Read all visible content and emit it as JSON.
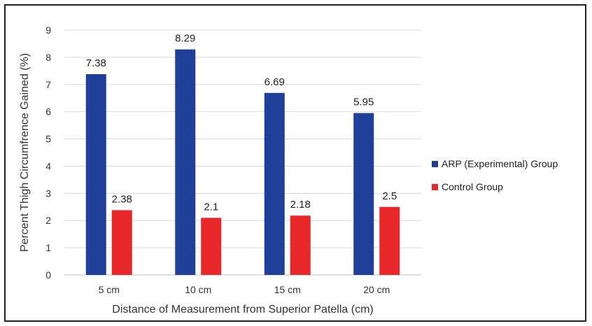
{
  "chart_data": {
    "type": "bar",
    "title": "",
    "xlabel": "Distance of Measurement from Superior Patella (cm)",
    "ylabel": "Percent Thigh Circumfrence Gained (%)",
    "categories": [
      "5 cm",
      "10 cm",
      "15 cm",
      "20 cm"
    ],
    "ylim": [
      0,
      9
    ],
    "yticks": [
      0,
      1,
      2,
      3,
      4,
      5,
      6,
      7,
      8,
      9
    ],
    "grid": true,
    "legend_position": "right",
    "series": [
      {
        "name": "ARP (Experimental) Group",
        "color": "#1f3f9b",
        "values": [
          7.38,
          8.29,
          6.69,
          5.95
        ]
      },
      {
        "name": "Control Group",
        "color": "#e8272b",
        "values": [
          2.38,
          2.1,
          2.18,
          2.5
        ]
      }
    ]
  }
}
